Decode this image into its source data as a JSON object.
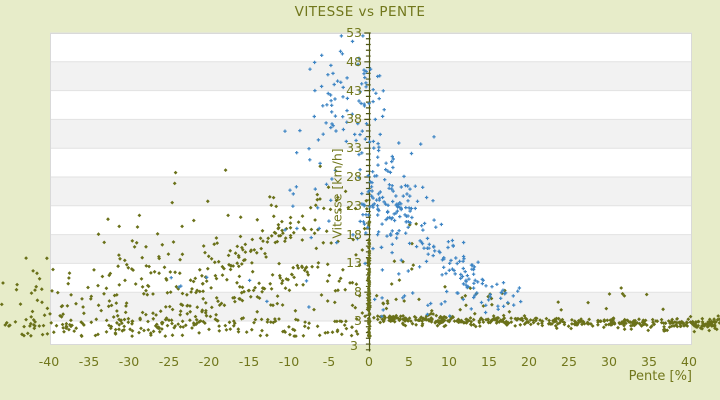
{
  "title": "VITESSE vs PENTE",
  "chart_data": {
    "type": "scatter",
    "title": "VITESSE vs PENTE",
    "xlabel": "Pente [%]",
    "ylabel": "Vitesse [km/h]",
    "x_ticks": [
      -40,
      -35,
      -30,
      -25,
      -20,
      -15,
      -10,
      -5,
      0,
      5,
      10,
      15,
      20,
      25,
      30,
      35,
      40
    ],
    "y_ticks": [
      3,
      8,
      13,
      18,
      23,
      28,
      33,
      38,
      43,
      48,
      53
    ],
    "y_axis_end_label": "3",
    "xlim": [
      -39.9,
      40.4
    ],
    "ylim": [
      -1.2,
      53
    ],
    "y_axis_at_x": 0,
    "grid": "horizontal-bands",
    "legend": "none",
    "colors": {
      "background": "#e7ecc9",
      "text": "#71771c",
      "axis_line": "#4e5513",
      "band_gray": "#f2f2f2",
      "band_white": "#ffffff",
      "grid_line": "#e2e2e2",
      "plot_border": "#d9d9d9",
      "series_olive": "#6a7119",
      "series_blue": "#3e85c4"
    },
    "seed": 42,
    "series": [
      {
        "name": "olive",
        "marker": "diamond",
        "color": "#6a7119",
        "clusters": [
          {
            "type": "uniform",
            "n": 120,
            "p": [
              -46,
              -20
            ],
            "v": [
              2,
              14
            ],
            "vpow": 1.5
          },
          {
            "type": "uniform",
            "n": 110,
            "p": [
              -33,
              -8
            ],
            "v": [
              2.5,
              17
            ],
            "vpow": 1.4
          },
          {
            "type": "band",
            "n": 75,
            "from": [
              -24,
              6.5
            ],
            "to": [
              -5,
              24
            ],
            "jp": 1.6,
            "jv": 1.3
          },
          {
            "type": "band",
            "n": 40,
            "from": [
              -20,
              5
            ],
            "to": [
              -7,
              12.5
            ],
            "jp": 1.4,
            "jv": 1.0
          },
          {
            "type": "uniform",
            "n": 26,
            "p": [
              -25,
              -4
            ],
            "v": [
              17,
              30
            ],
            "vpow": 1.3
          },
          {
            "type": "uniform",
            "n": 40,
            "p": [
              -7,
              -0.2
            ],
            "v": [
              3,
              26
            ],
            "vpow": 1.2
          },
          {
            "type": "gauss",
            "n": 120,
            "pm": 0,
            "ps": 0.06,
            "vm": 7,
            "vs": 6,
            "vclamp": [
              0.4,
              27
            ]
          },
          {
            "type": "band",
            "n": 320,
            "from": [
              0.5,
              3.5
            ],
            "to": [
              47.5,
              2.3
            ],
            "jp": 0.3,
            "jv": 0.5
          },
          {
            "type": "band",
            "n": 130,
            "from": [
              1,
              3.3
            ],
            "to": [
              46,
              2.1
            ],
            "jp": 0.5,
            "jv": 1.1
          },
          {
            "type": "uniform",
            "n": 150,
            "p": [
              -45.5,
              0
            ],
            "v": [
              0.3,
              3.4
            ]
          },
          {
            "type": "uniform",
            "n": 30,
            "p": [
              0.5,
              18
            ],
            "v": [
              4,
              9.5
            ],
            "vpow": 1.3
          },
          {
            "type": "uniform",
            "n": 10,
            "p": [
              18,
              39
            ],
            "v": [
              4.5,
              12
            ],
            "vpow": 1.4
          },
          {
            "type": "uniform",
            "n": 9,
            "p": [
              -36,
              -24
            ],
            "v": [
              15,
              24
            ]
          },
          {
            "type": "uniform",
            "n": 20,
            "p": [
              40,
              47.5
            ],
            "v": [
              1.6,
              4
            ]
          },
          {
            "type": "uniform",
            "n": 8,
            "p": [
              2,
              6
            ],
            "v": [
              10,
              21
            ]
          }
        ]
      },
      {
        "name": "blue",
        "marker": "plus",
        "color": "#3e85c4",
        "clusters": [
          {
            "type": "gauss",
            "n": 70,
            "pm": -2.5,
            "ps": 2.6,
            "vm": 42,
            "vs": 5,
            "pclamp": [
              -10,
              4
            ],
            "vclamp": [
              30,
              52.5
            ]
          },
          {
            "type": "uniform",
            "n": 28,
            "p": [
              -11,
              -4
            ],
            "v": [
              15,
              43
            ]
          },
          {
            "type": "gauss",
            "n": 105,
            "pm": 2.5,
            "ps": 2.4,
            "vm": 24,
            "vs": 6,
            "pclamp": [
              -2,
              9
            ],
            "vclamp": [
              10,
              38
            ]
          },
          {
            "type": "band",
            "n": 80,
            "from": [
              2,
              24
            ],
            "to": [
              14,
              8
            ],
            "jp": 2.2,
            "jv": 3.5
          },
          {
            "type": "band",
            "n": 50,
            "from": [
              8,
              14
            ],
            "to": [
              19,
              6
            ],
            "jp": 1.6,
            "jv": 2.2
          },
          {
            "type": "uniform",
            "n": 20,
            "p": [
              0.5,
              15
            ],
            "v": [
              3.5,
              8
            ]
          },
          {
            "type": "uniform",
            "n": 8,
            "p": [
              -26,
              -6
            ],
            "v": [
              3.5,
              11
            ]
          },
          {
            "type": "uniform",
            "n": 16,
            "p": [
              -1.3,
              1.3
            ],
            "v": [
              18,
              35
            ]
          }
        ]
      }
    ]
  }
}
